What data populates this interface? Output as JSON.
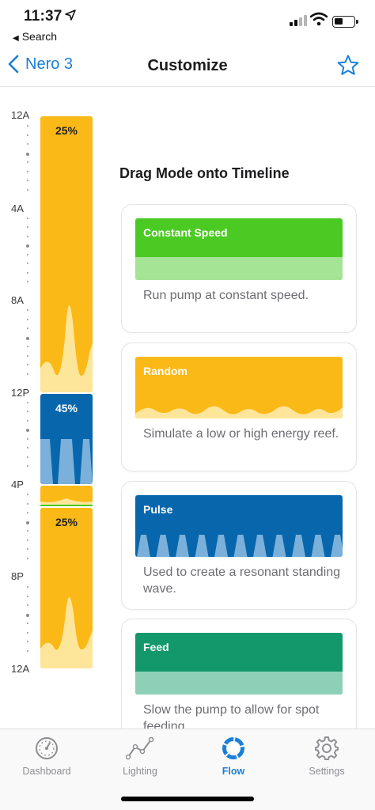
{
  "status": {
    "time": "11:37",
    "back_app": "Search"
  },
  "nav": {
    "back_label": "Nero 3",
    "title": "Customize"
  },
  "timeline": {
    "ticks": [
      "12A",
      "4A",
      "8A",
      "12P",
      "4P",
      "8P",
      "12A"
    ],
    "blocks": [
      {
        "label": "25%",
        "mode": "Random"
      },
      {
        "label": "45%",
        "mode": "Pulse"
      },
      {
        "label": "",
        "mode": "Random"
      },
      {
        "label": "25%",
        "mode": "Random"
      }
    ]
  },
  "panel": {
    "heading": "Drag Mode onto Timeline",
    "modes": [
      {
        "name": "Constant Speed",
        "description": "Run pump at constant speed.",
        "color": "#4cca24",
        "light": "#a6e495"
      },
      {
        "name": "Random",
        "description": "Simulate a low or high energy reef.",
        "color": "#fbb917",
        "light": "#fde59a"
      },
      {
        "name": "Pulse",
        "description": "Used to create a resonant standing wave.",
        "color": "#0866ad",
        "light": "#7ab0d9"
      },
      {
        "name": "Feed",
        "description": "Slow the pump to allow for spot feeding.",
        "color": "#12986a",
        "light": "#8ecfb7"
      }
    ]
  },
  "tabs": [
    {
      "label": "Dashboard",
      "icon": "gauge-icon"
    },
    {
      "label": "Lighting",
      "icon": "line-chart-icon"
    },
    {
      "label": "Flow",
      "icon": "flow-ring-icon",
      "active": true
    },
    {
      "label": "Settings",
      "icon": "gear-icon"
    }
  ],
  "colors": {
    "accent": "#1a7fd8"
  }
}
